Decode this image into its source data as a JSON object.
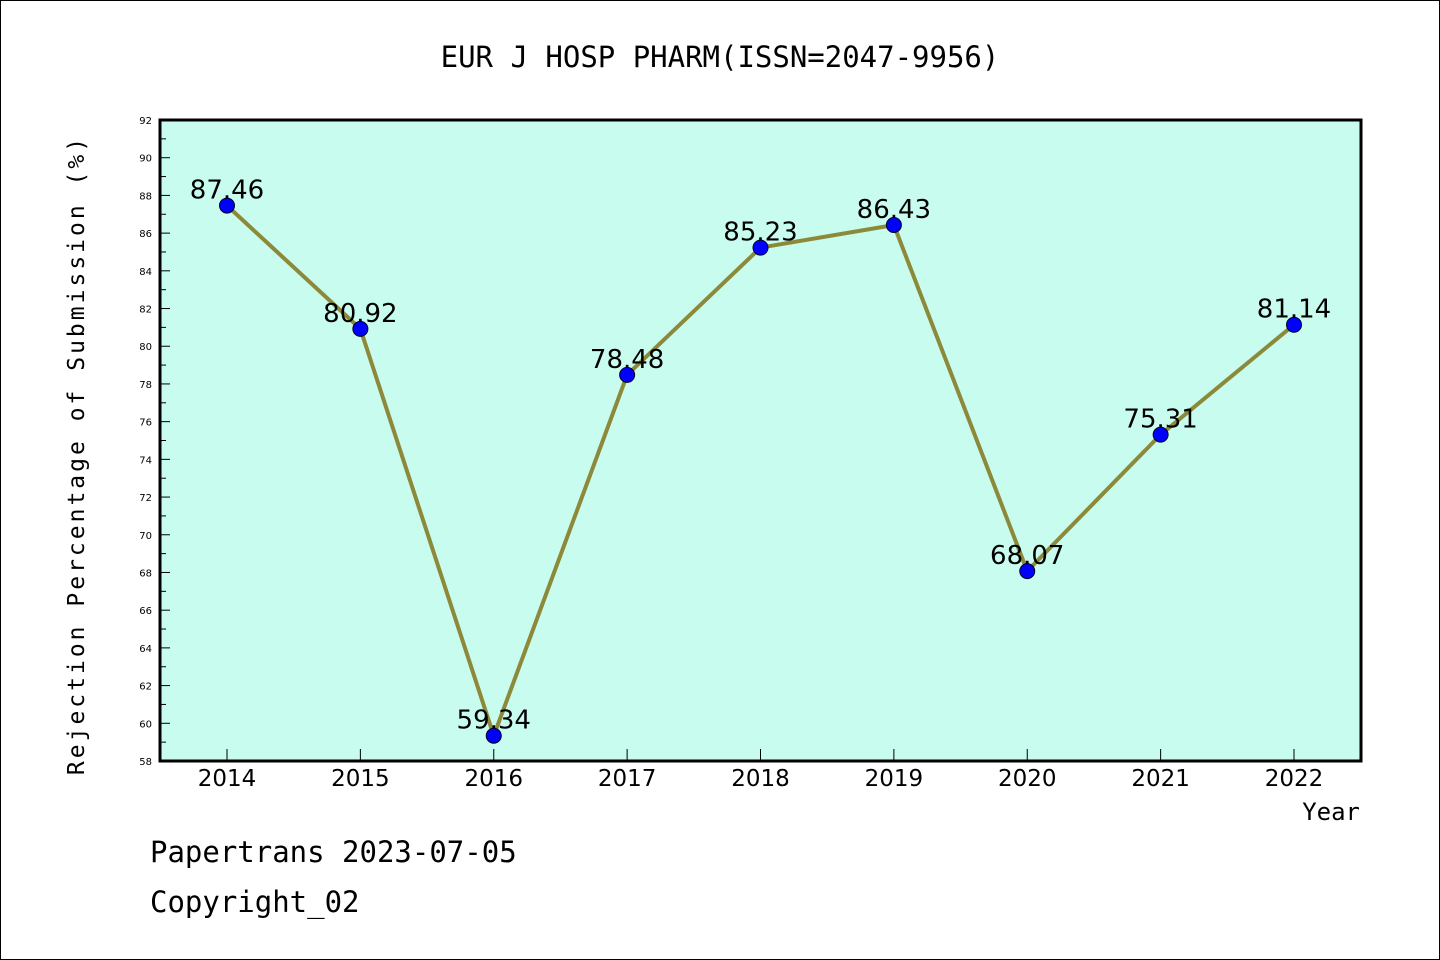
{
  "chart_data": {
    "type": "line",
    "title": "EUR J HOSP PHARM(ISSN=2047-9956)",
    "xlabel": "Year",
    "ylabel": "Rejection Percentage of Submission (%)",
    "categories": [
      "2014",
      "2015",
      "2016",
      "2017",
      "2018",
      "2019",
      "2020",
      "2021",
      "2022"
    ],
    "series": [
      {
        "values": [
          87.46,
          80.92,
          59.34,
          78.48,
          85.23,
          86.43,
          68.07,
          75.31,
          81.14
        ],
        "labels": [
          "87.46",
          "80.92",
          "59.34",
          "78.48",
          "85.23",
          "86.43",
          "68.07",
          "75.31",
          "81.14"
        ]
      }
    ],
    "ylim": [
      58,
      92
    ],
    "yticks": [
      "58",
      "60",
      "62",
      "64",
      "66",
      "68",
      "70",
      "72",
      "74",
      "76",
      "78",
      "80",
      "82",
      "84",
      "86",
      "88",
      "90",
      "92"
    ],
    "grid": false,
    "colors": {
      "plot_background": "#c8fcee",
      "line": "#8c8a3a",
      "marker": "#0000ff"
    }
  },
  "footer": {
    "line1": "Papertrans 2023-07-05",
    "line2": "Copyright_02"
  }
}
